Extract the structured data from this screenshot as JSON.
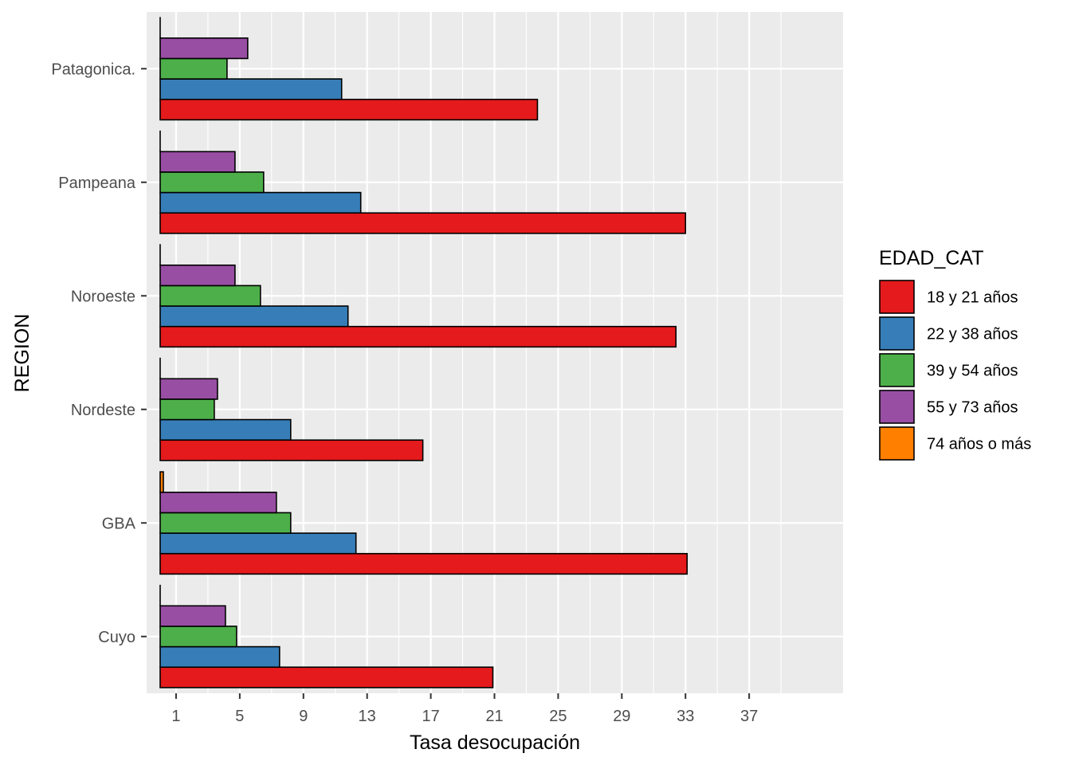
{
  "chart_data": {
    "type": "bar",
    "orientation": "horizontal",
    "categories": [
      "Cuyo",
      "GBA",
      "Nordeste",
      "Noroeste",
      "Pampeana",
      "Patagonica."
    ],
    "series": [
      {
        "name": "18 y 21 años",
        "color": "#E41A1C",
        "values": [
          20.9,
          33.1,
          16.5,
          32.4,
          33.0,
          23.7
        ]
      },
      {
        "name": "22 y 38 años",
        "color": "#377EB8",
        "values": [
          7.5,
          12.3,
          8.2,
          11.8,
          12.6,
          11.4
        ]
      },
      {
        "name": "39 y 54 años",
        "color": "#4DAF4A",
        "values": [
          4.8,
          8.2,
          3.4,
          6.3,
          6.5,
          4.2
        ]
      },
      {
        "name": "55 y 73 años",
        "color": "#984EA3",
        "values": [
          4.1,
          7.3,
          3.6,
          4.7,
          4.7,
          5.5
        ]
      },
      {
        "name": "74 años o más",
        "color": "#FF7F00",
        "values": [
          0,
          0.2,
          0,
          0,
          0,
          0
        ]
      }
    ],
    "xlabel": "Tasa desocupación",
    "ylabel": "REGION",
    "xticks": [
      1,
      5,
      9,
      13,
      17,
      21,
      25,
      29,
      33,
      37
    ],
    "xlim": [
      -0.85,
      42.9
    ],
    "grid": true,
    "legend": {
      "title": "EDAD_CAT",
      "position": "right"
    }
  }
}
